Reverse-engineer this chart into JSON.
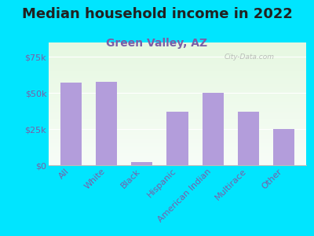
{
  "title": "Median household income in 2022",
  "subtitle": "Green Valley, AZ",
  "categories": [
    "All",
    "White",
    "Black",
    "Hispanic",
    "American Indian",
    "Multirace",
    "Other"
  ],
  "values": [
    57000,
    58000,
    2000,
    37000,
    50000,
    37000,
    25000
  ],
  "bar_color": "#b39ddb",
  "background_outer": "#00e5ff",
  "title_color": "#212121",
  "subtitle_color": "#7b5ea7",
  "tick_label_color": "#7b5ea7",
  "ytick_labels": [
    "$0",
    "$25k",
    "$50k",
    "$75k"
  ],
  "ytick_values": [
    0,
    25000,
    50000,
    75000
  ],
  "ylim": [
    0,
    85000
  ],
  "watermark": "City-Data.com",
  "title_fontsize": 13,
  "subtitle_fontsize": 10,
  "tick_fontsize": 8
}
